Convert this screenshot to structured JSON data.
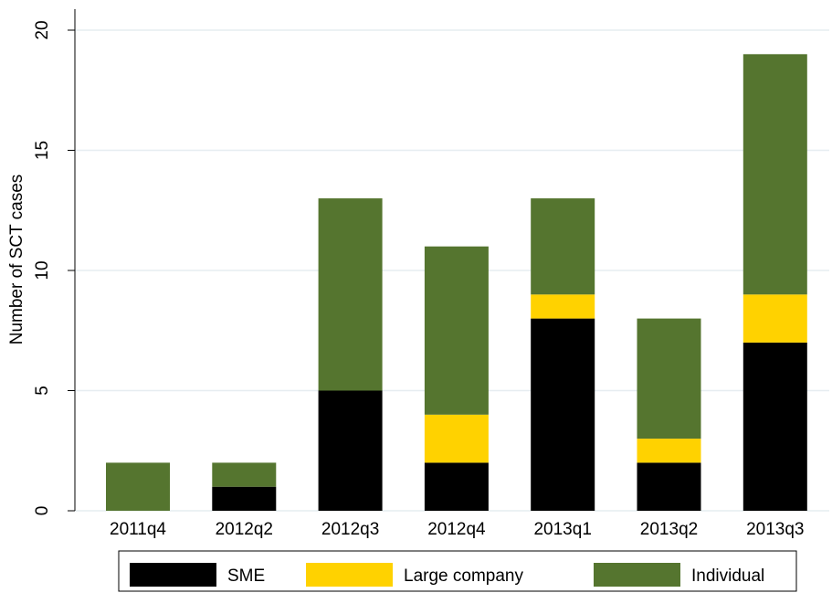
{
  "chart_data": {
    "type": "stacked-bar",
    "y_label": "Number of SCT cases",
    "categories": [
      "2011q4",
      "2012q2",
      "2012q3",
      "2012q4",
      "2013q1",
      "2013q2",
      "2013q3"
    ],
    "series": [
      {
        "name": "SME",
        "color": "#000000",
        "values": [
          0,
          1,
          5,
          2,
          8,
          2,
          7
        ]
      },
      {
        "name": "Large company",
        "color": "#ffd200",
        "values": [
          0,
          0,
          0,
          2,
          1,
          1,
          2
        ]
      },
      {
        "name": "Individual",
        "color": "#55752f",
        "values": [
          2,
          1,
          8,
          7,
          4,
          5,
          10
        ]
      }
    ],
    "ylim": [
      0,
      20
    ],
    "yticks": [
      0,
      5,
      10,
      15,
      20
    ],
    "grid": true,
    "legend": "bottom"
  }
}
